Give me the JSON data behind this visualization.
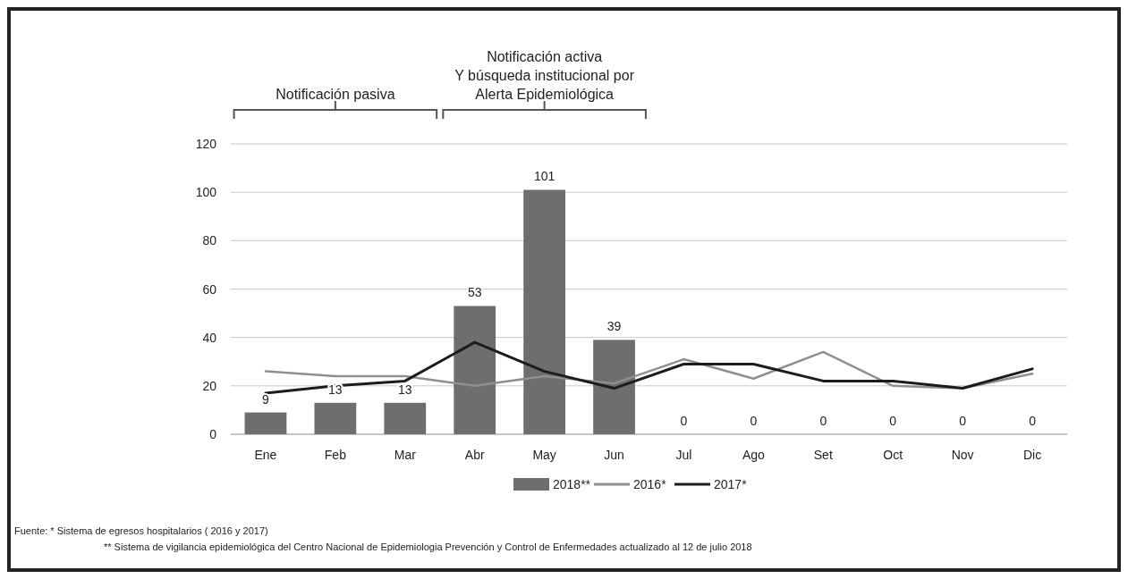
{
  "chart_data": {
    "type": "bar",
    "categories": [
      "Ene",
      "Feb",
      "Mar",
      "Abr",
      "May",
      "Jun",
      "Jul",
      "Ago",
      "Set",
      "Oct",
      "Nov",
      "Dic"
    ],
    "series": [
      {
        "name": "2018**",
        "color": "#6e6e6e",
        "values": [
          9,
          13,
          13,
          53,
          101,
          39,
          0,
          0,
          0,
          0,
          0,
          0
        ],
        "value_labels": [
          "9",
          "13",
          "13",
          "53",
          "101",
          "39",
          "0",
          "0",
          "0",
          "0",
          "0",
          "0"
        ]
      },
      {
        "name": "2016*",
        "type": "line",
        "color": "#8f8f8f",
        "values": [
          26,
          24,
          24,
          20,
          24,
          21,
          31,
          23,
          34,
          20,
          19,
          25
        ]
      },
      {
        "name": "2017*",
        "type": "line",
        "color": "#1c1c1c",
        "values": [
          17,
          20,
          22,
          38,
          26,
          19,
          29,
          29,
          22,
          22,
          19,
          27
        ]
      }
    ],
    "ylim": [
      0,
      120
    ],
    "yticks": [
      0,
      20,
      40,
      60,
      80,
      100,
      120
    ],
    "grid": "y",
    "legend": "bottom",
    "marker": "none",
    "line_style": "solid",
    "annotations": [
      "Notificación pasiva",
      "Notificación activa\nY búsqueda institucional por\nAlerta Epidemiológica",
      "Fuente: *  Sistema de egresos hospitalarios ( 2016 y 2017)",
      "** Sistema de vigilancia epidemiológica del Centro Nacional de Epidemiologia Prevención y Control de Enfermedades  actualizado al 12 de julio 2018"
    ]
  }
}
